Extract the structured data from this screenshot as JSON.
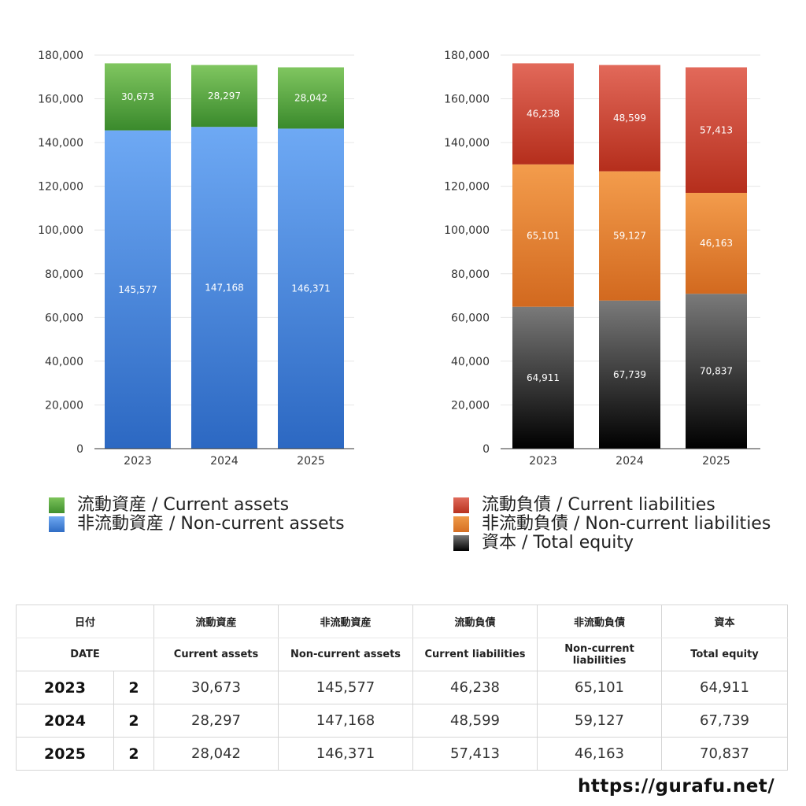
{
  "chart_data": [
    {
      "type": "bar",
      "stacked": true,
      "categories": [
        "2023",
        "2024",
        "2025"
      ],
      "series": [
        {
          "name": "非流動資産 / Non-current assets",
          "values": [
            145577,
            147168,
            146371
          ],
          "color": "#4a8ad8"
        },
        {
          "name": "流動資産 / Current assets",
          "values": [
            30673,
            28297,
            28042
          ],
          "color": "#5aa63f"
        }
      ],
      "ylim": [
        0,
        180000
      ],
      "yticks": [
        "0",
        "20,000",
        "40,000",
        "60,000",
        "80,000",
        "100,000",
        "120,000",
        "140,000",
        "160,000",
        "180,000"
      ],
      "grid": true,
      "legend": "bottom"
    },
    {
      "type": "bar",
      "stacked": true,
      "categories": [
        "2023",
        "2024",
        "2025"
      ],
      "series": [
        {
          "name": "資本 / Total equity",
          "values": [
            64911,
            67739,
            70837
          ],
          "color": "#333333"
        },
        {
          "name": "非流動負債 / Non-current liabilities",
          "values": [
            65101,
            59127,
            46163
          ],
          "color": "#e08436"
        },
        {
          "name": "流動負債 / Current liabilities",
          "values": [
            46238,
            48599,
            57413
          ],
          "color": "#cc4a36"
        }
      ],
      "ylim": [
        0,
        180000
      ],
      "yticks": [
        "0",
        "20,000",
        "40,000",
        "60,000",
        "80,000",
        "100,000",
        "120,000",
        "140,000",
        "160,000",
        "180,000"
      ],
      "grid": true,
      "legend": "bottom"
    }
  ],
  "legend_left": [
    {
      "label": "流動資産 / Current assets"
    },
    {
      "label": "非流動資産 / Non-current assets"
    }
  ],
  "legend_right": [
    {
      "label": "流動負債 / Current liabilities"
    },
    {
      "label": "非流動負債 / Non-current liabilities"
    },
    {
      "label": "資本 / Total equity"
    }
  ],
  "table": {
    "header_jp": [
      "日付",
      "流動資産",
      "非流動資産",
      "流動負債",
      "非流動負債",
      "資本"
    ],
    "header_en": [
      "DATE",
      "Current assets",
      "Non-current assets",
      "Current liabilities",
      "Non-current liabilities",
      "Total equity"
    ],
    "rows": [
      {
        "year": "2023",
        "num": "2",
        "values": [
          "30,673",
          "145,577",
          "46,238",
          "65,101",
          "64,911"
        ]
      },
      {
        "year": "2024",
        "num": "2",
        "values": [
          "28,297",
          "147,168",
          "48,599",
          "59,127",
          "67,739"
        ]
      },
      {
        "year": "2025",
        "num": "2",
        "values": [
          "28,042",
          "146,371",
          "57,413",
          "46,163",
          "70,837"
        ]
      }
    ]
  },
  "source": "https://gurafu.net/"
}
